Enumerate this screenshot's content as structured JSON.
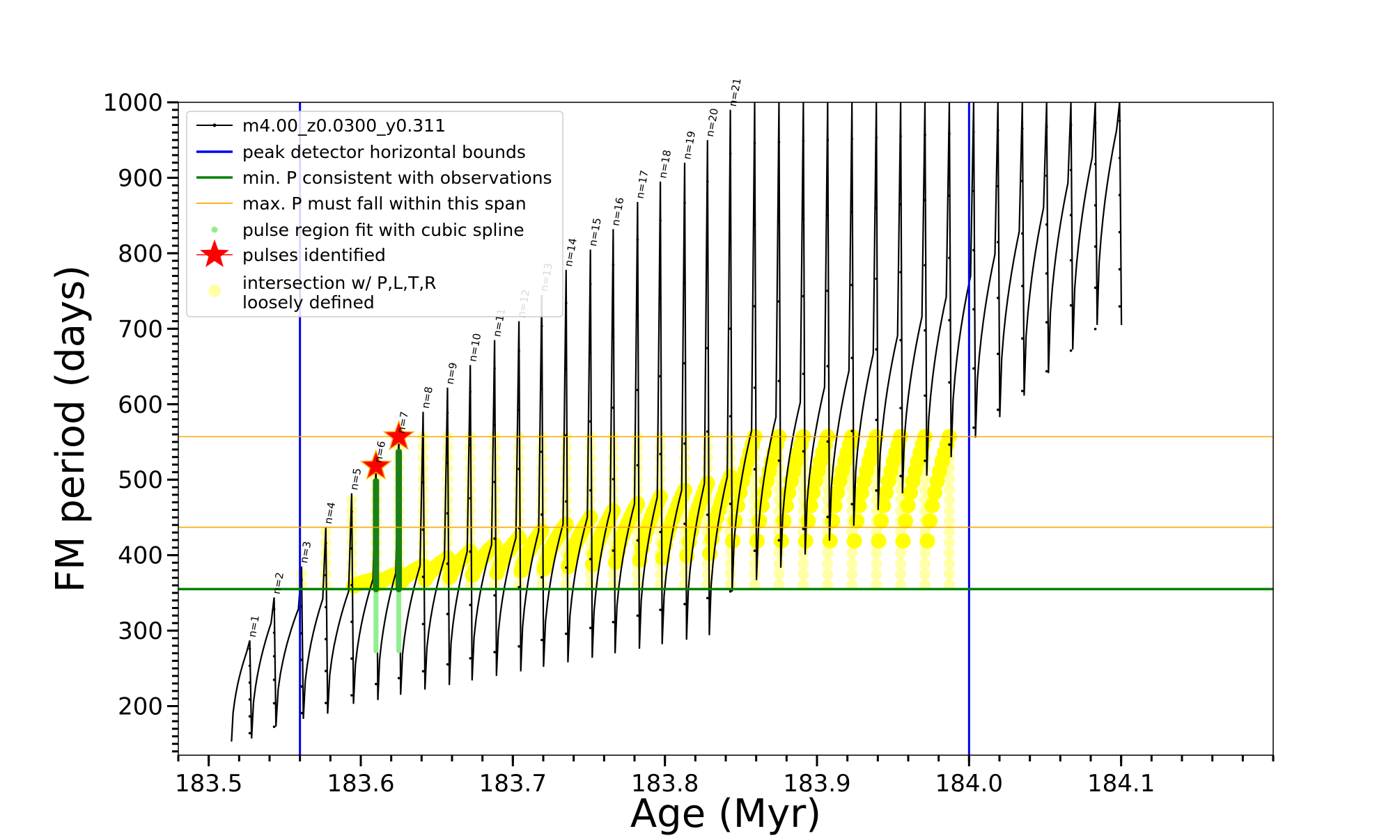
{
  "chart_data": {
    "type": "line",
    "xlabel": "Age (Myr)",
    "ylabel": "FM period (days)",
    "xlim": [
      183.48,
      184.2
    ],
    "ylim": [
      135,
      1000
    ],
    "xticks": [
      "183.5",
      "183.6",
      "183.7",
      "183.8",
      "183.9",
      "184.0",
      "184.1"
    ],
    "xtick_values": [
      183.5,
      183.6,
      183.7,
      183.8,
      183.9,
      184.0,
      184.1
    ],
    "yticks": [
      "200",
      "300",
      "400",
      "500",
      "600",
      "700",
      "800",
      "900",
      "1000"
    ],
    "ytick_values": [
      200,
      300,
      400,
      500,
      600,
      700,
      800,
      900,
      1000
    ],
    "x_minor_step": 0.02,
    "y_minor_step": 10,
    "grid": false,
    "legend_position": "top-left",
    "colors": {
      "track": "#000000",
      "horizontal_bounds": "#0000ee",
      "min_period": "#008000",
      "max_period_span": "#ffa500",
      "pulse_fit": "#90ee90",
      "pulse_fit_dark": "#1a7f1a",
      "pulses_identified": "#ff0000",
      "intersection": "#ffff00"
    },
    "lines": {
      "horizontal_bounds_x": [
        183.56,
        184.0
      ],
      "min_period_y": 355,
      "max_period_span_y": [
        437,
        557
      ]
    },
    "legend": [
      {
        "label": "m4.00_z0.0300_y0.311",
        "kind": "line-dot",
        "color_key": "track"
      },
      {
        "label": "peak detector horizontal bounds",
        "kind": "line",
        "color_key": "horizontal_bounds"
      },
      {
        "label": "min. P consistent with observations",
        "kind": "line",
        "color_key": "min_period"
      },
      {
        "label": "max. P must fall within this span",
        "kind": "thin-line",
        "color_key": "max_period_span"
      },
      {
        "label": "pulse region fit with cubic spline",
        "kind": "dot",
        "color_key": "pulse_fit"
      },
      {
        "label": "pulses identified",
        "kind": "star",
        "color_key": "pulses_identified"
      },
      {
        "label": "intersection w/ P,L,T,R",
        "label2": "loosely defined",
        "kind": "circle",
        "color_key": "intersection"
      }
    ],
    "pulse_labels": [
      "n=1",
      "n=2",
      "n=3",
      "n=4",
      "n=5",
      "n=6",
      "n=7",
      "n=8",
      "n=9",
      "n=10",
      "n=11",
      "n=12",
      "n=13",
      "n=14",
      "n=15",
      "n=16",
      "n=17",
      "n=18",
      "n=19",
      "n=20",
      "n=21"
    ],
    "pulse_label_faded": [
      false,
      false,
      false,
      false,
      false,
      false,
      false,
      false,
      false,
      false,
      false,
      true,
      true,
      false,
      false,
      false,
      false,
      false,
      false,
      false,
      false
    ],
    "pulses": [
      {
        "x": 183.527,
        "min": 153,
        "peak": 287
      },
      {
        "x": 183.543,
        "min": 157,
        "peak": 344
      },
      {
        "x": 183.561,
        "min": 173,
        "peak": 385
      },
      {
        "x": 183.577,
        "min": 183,
        "peak": 437
      },
      {
        "x": 183.594,
        "min": 190,
        "peak": 482
      },
      {
        "x": 183.61,
        "min": 203,
        "peak": 518
      },
      {
        "x": 183.625,
        "min": 208,
        "peak": 557
      },
      {
        "x": 183.641,
        "min": 215,
        "peak": 590
      },
      {
        "x": 183.657,
        "min": 222,
        "peak": 622
      },
      {
        "x": 183.672,
        "min": 228,
        "peak": 652
      },
      {
        "x": 183.688,
        "min": 234,
        "peak": 685
      },
      {
        "x": 183.704,
        "min": 240,
        "peak": 710
      },
      {
        "x": 183.719,
        "min": 246,
        "peak": 745
      },
      {
        "x": 183.735,
        "min": 252,
        "peak": 778
      },
      {
        "x": 183.751,
        "min": 258,
        "peak": 805
      },
      {
        "x": 183.766,
        "min": 264,
        "peak": 832
      },
      {
        "x": 183.782,
        "min": 270,
        "peak": 868
      },
      {
        "x": 183.797,
        "min": 276,
        "peak": 895
      },
      {
        "x": 183.813,
        "min": 282,
        "peak": 920
      },
      {
        "x": 183.828,
        "min": 288,
        "peak": 950
      },
      {
        "x": 183.843,
        "min": 294,
        "peak": 990
      }
    ],
    "identified_pulses": [
      {
        "n": "n=6",
        "x": 183.61,
        "y": 518
      },
      {
        "n": "n=7",
        "x": 183.625,
        "y": 557
      }
    ]
  }
}
